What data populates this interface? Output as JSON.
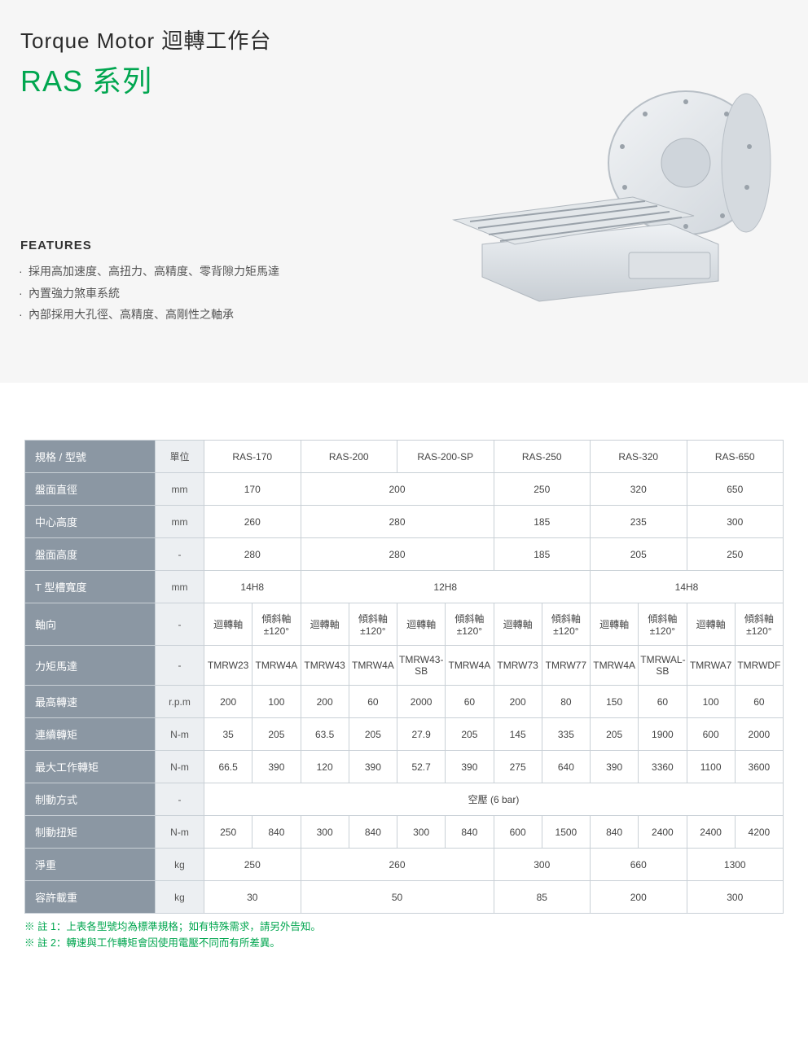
{
  "hero": {
    "title1": "Torque Motor 迴轉工作台",
    "title2": "RAS 系列",
    "features_heading": "FEATURES",
    "features": [
      "採用高加速度、高扭力、高精度、零背隙力矩馬達",
      "內置強力煞車系統",
      "內部採用大孔徑、高精度、高剛性之軸承"
    ]
  },
  "image": {
    "bg": "#e9ecef",
    "body": "#dfe3e6",
    "edge": "#c5cbd1",
    "plate": "#d6dade"
  },
  "table": {
    "header": {
      "spec_label": "規格 / 型號",
      "unit_label": "單位",
      "models": [
        "RAS-170",
        "RAS-200",
        "RAS-200-SP",
        "RAS-250",
        "RAS-320",
        "RAS-650"
      ]
    },
    "rows": {
      "diameter": {
        "label": "盤面直徑",
        "unit": "mm",
        "cells": [
          {
            "v": "170",
            "s": 2
          },
          {
            "v": "200",
            "s": 4
          },
          {
            "v": "250",
            "s": 2
          },
          {
            "v": "320",
            "s": 2
          },
          {
            "v": "650",
            "s": 2
          }
        ]
      },
      "center_h": {
        "label": "中心高度",
        "unit": "mm",
        "cells": [
          {
            "v": "260",
            "s": 2
          },
          {
            "v": "280",
            "s": 4
          },
          {
            "v": "185",
            "s": 2
          },
          {
            "v": "235",
            "s": 2
          },
          {
            "v": "300",
            "s": 2
          }
        ]
      },
      "face_h": {
        "label": "盤面高度",
        "unit": "-",
        "cells": [
          {
            "v": "280",
            "s": 2
          },
          {
            "v": "280",
            "s": 4
          },
          {
            "v": "185",
            "s": 2
          },
          {
            "v": "205",
            "s": 2
          },
          {
            "v": "250",
            "s": 2
          }
        ]
      },
      "tslot": {
        "label": "T 型槽寬度",
        "unit": "mm",
        "cells": [
          {
            "v": "14H8",
            "s": 2
          },
          {
            "v": "12H8",
            "s": 6
          },
          {
            "v": "14H8",
            "s": 4
          }
        ]
      },
      "axis": {
        "label": "軸向",
        "unit": "-",
        "pairs": 6,
        "rot": "迴轉軸",
        "tilt": "傾斜軸±120°"
      },
      "motor": {
        "label": "力矩馬達",
        "unit": "-",
        "vals": [
          "TMRW23",
          "TMRW4A",
          "TMRW43",
          "TMRW4A",
          "TMRW43-SB",
          "TMRW4A",
          "TMRW73",
          "TMRW77",
          "TMRW4A",
          "TMRWAL-SB",
          "TMRWA7",
          "TMRWDF"
        ]
      },
      "maxspeed": {
        "label": "最高轉速",
        "unit": "r.p.m",
        "vals": [
          "200",
          "100",
          "200",
          "60",
          "2000",
          "60",
          "200",
          "80",
          "150",
          "60",
          "100",
          "60"
        ]
      },
      "cont_tq": {
        "label": "連續轉矩",
        "unit": "N-m",
        "vals": [
          "35",
          "205",
          "63.5",
          "205",
          "27.9",
          "205",
          "145",
          "335",
          "205",
          "1900",
          "600",
          "2000"
        ]
      },
      "max_tq": {
        "label": "最大工作轉矩",
        "unit": "N-m",
        "vals": [
          "66.5",
          "390",
          "120",
          "390",
          "52.7",
          "390",
          "275",
          "640",
          "390",
          "3360",
          "1100",
          "3600"
        ]
      },
      "brake_type": {
        "label": "制動方式",
        "unit": "-",
        "full": "空壓 (6 bar)"
      },
      "brake_tq": {
        "label": "制動扭矩",
        "unit": "N-m",
        "vals": [
          "250",
          "840",
          "300",
          "840",
          "300",
          "840",
          "600",
          "1500",
          "840",
          "2400",
          "2400",
          "4200"
        ]
      },
      "weight": {
        "label": "淨重",
        "unit": "kg",
        "cells": [
          {
            "v": "250",
            "s": 2
          },
          {
            "v": "260",
            "s": 4
          },
          {
            "v": "300",
            "s": 2
          },
          {
            "v": "660",
            "s": 2
          },
          {
            "v": "1300",
            "s": 2
          }
        ]
      },
      "load": {
        "label": "容許載重",
        "unit": "kg",
        "cells": [
          {
            "v": "30",
            "s": 2
          },
          {
            "v": "50",
            "s": 4
          },
          {
            "v": "85",
            "s": 2
          },
          {
            "v": "200",
            "s": 2
          },
          {
            "v": "300",
            "s": 2
          }
        ]
      }
    },
    "notes": [
      "※ 註 1：上表各型號均為標準規格；如有特殊需求，請另外告知。",
      "※ 註 2：轉速與工作轉矩會因使用電壓不同而有所差異。"
    ]
  },
  "colors": {
    "accent": "#00a64f",
    "header_bg": "#8b97a3",
    "unit_bg": "#eceff2",
    "border": "#c9d0d6"
  }
}
